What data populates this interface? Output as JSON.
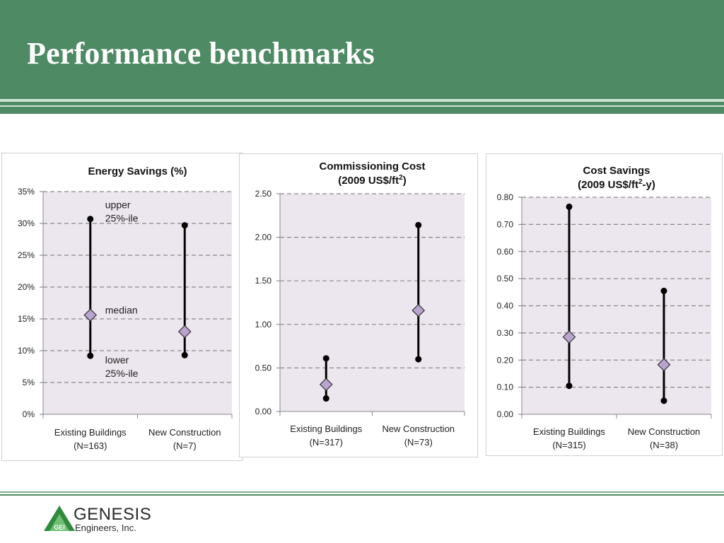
{
  "slide": {
    "title": "Performance benchmarks"
  },
  "logo": {
    "name": "GENESIS",
    "tagline": "Engineers, Inc.",
    "mark": "GEI"
  },
  "colors": {
    "banner": "#4e8a64",
    "plot_bg": "#ece6ee",
    "marker_fill": "#b9a4cf",
    "gridline": "#8a8a8a",
    "range_line": "#000000"
  },
  "chart_data": [
    {
      "type": "range",
      "title": "Energy Savings (%)",
      "ylim": [
        0,
        35
      ],
      "yticks": [
        0,
        5,
        10,
        15,
        20,
        25,
        30,
        35
      ],
      "ytick_labels": [
        "0%",
        "5%",
        "10%",
        "15%",
        "20%",
        "25%",
        "30%",
        "35%"
      ],
      "grid": true,
      "categories": [
        {
          "line1": "Existing Buildings",
          "line2": "(N=163)",
          "lower": 9.2,
          "median": 15.6,
          "upper": 30.7
        },
        {
          "line1": "New Construction",
          "line2": "(N=7)",
          "lower": 9.3,
          "median": 13.0,
          "upper": 29.7
        }
      ],
      "annotations": {
        "upper_line1": "upper",
        "upper_line2": "25%-ile",
        "median": "median",
        "lower_line1": "lower",
        "lower_line2": "25%-ile"
      }
    },
    {
      "type": "range",
      "title_line1": "Commissioning Cost",
      "title_line2": "(2009 US$/ft",
      "title_sup": "2",
      "title_end": ")",
      "ylim": [
        0,
        2.5
      ],
      "yticks": [
        0,
        0.5,
        1.0,
        1.5,
        2.0,
        2.5
      ],
      "ytick_labels": [
        "0.00",
        "0.50",
        "1.00",
        "1.50",
        "2.00",
        "2.50"
      ],
      "grid": true,
      "categories": [
        {
          "line1": "Existing Buildings",
          "line2": "(N=317)",
          "lower": 0.15,
          "median": 0.31,
          "upper": 0.61
        },
        {
          "line1": "New Construction",
          "line2": "(N=73)",
          "lower": 0.6,
          "median": 1.16,
          "upper": 2.14
        }
      ]
    },
    {
      "type": "range",
      "title_line1": "Cost Savings",
      "title_line2": "(2009 US$/ft",
      "title_sup": "2",
      "title_end": "-y)",
      "ylim": [
        0,
        0.8
      ],
      "yticks": [
        0,
        0.1,
        0.2,
        0.3,
        0.4,
        0.5,
        0.6,
        0.7,
        0.8
      ],
      "ytick_labels": [
        "0.00",
        "0.10",
        "0.20",
        "0.30",
        "0.40",
        "0.50",
        "0.60",
        "0.70",
        "0.80"
      ],
      "grid": true,
      "categories": [
        {
          "line1": "Existing Buildings",
          "line2": "(N=315)",
          "lower": 0.105,
          "median": 0.285,
          "upper": 0.765
        },
        {
          "line1": "New Construction",
          "line2": "(N=38)",
          "lower": 0.05,
          "median": 0.183,
          "upper": 0.455
        }
      ]
    }
  ]
}
